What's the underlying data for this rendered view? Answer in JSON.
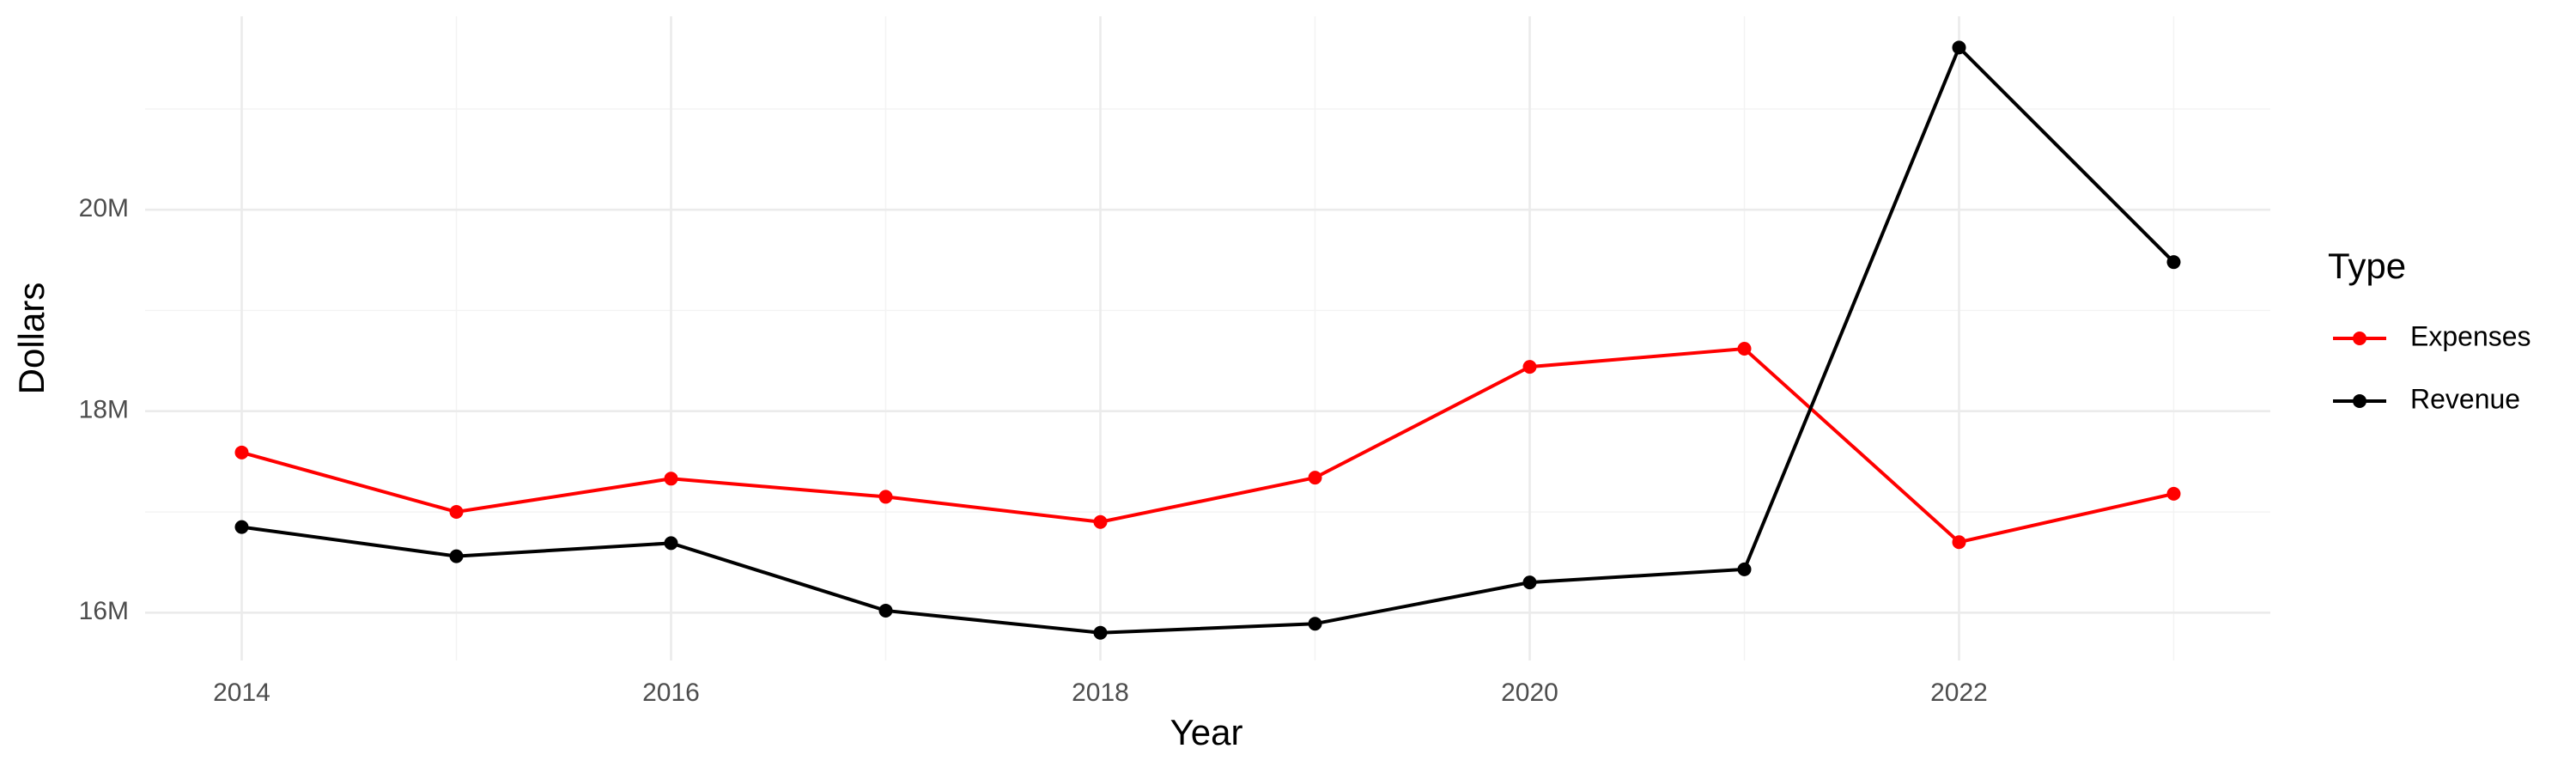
{
  "chart_data": {
    "type": "line",
    "x_label": "Year",
    "y_label": "Dollars",
    "legend_title": "Type",
    "legend_position": "right",
    "grid": true,
    "x": [
      2014,
      2015,
      2016,
      2017,
      2018,
      2019,
      2020,
      2021,
      2022,
      2023
    ],
    "xlim": [
      2013.55,
      2023.45
    ],
    "xticks": [
      2014,
      2016,
      2018,
      2020,
      2022
    ],
    "ylim": [
      15525000,
      21920000
    ],
    "yticks": [
      {
        "value": 16000000,
        "label": "16M"
      },
      {
        "value": 18000000,
        "label": "18M"
      },
      {
        "value": 20000000,
        "label": "20M"
      }
    ],
    "series": [
      {
        "name": "Expenses",
        "color": "#ff0000",
        "values": [
          17590000,
          17000000,
          17330000,
          17150000,
          16900000,
          17340000,
          18440000,
          18620000,
          16700000,
          17180000
        ]
      },
      {
        "name": "Revenue",
        "color": "#000000",
        "values": [
          16850000,
          16560000,
          16690000,
          16020000,
          15800000,
          15890000,
          16300000,
          16430000,
          21610000,
          19480000
        ]
      }
    ]
  }
}
